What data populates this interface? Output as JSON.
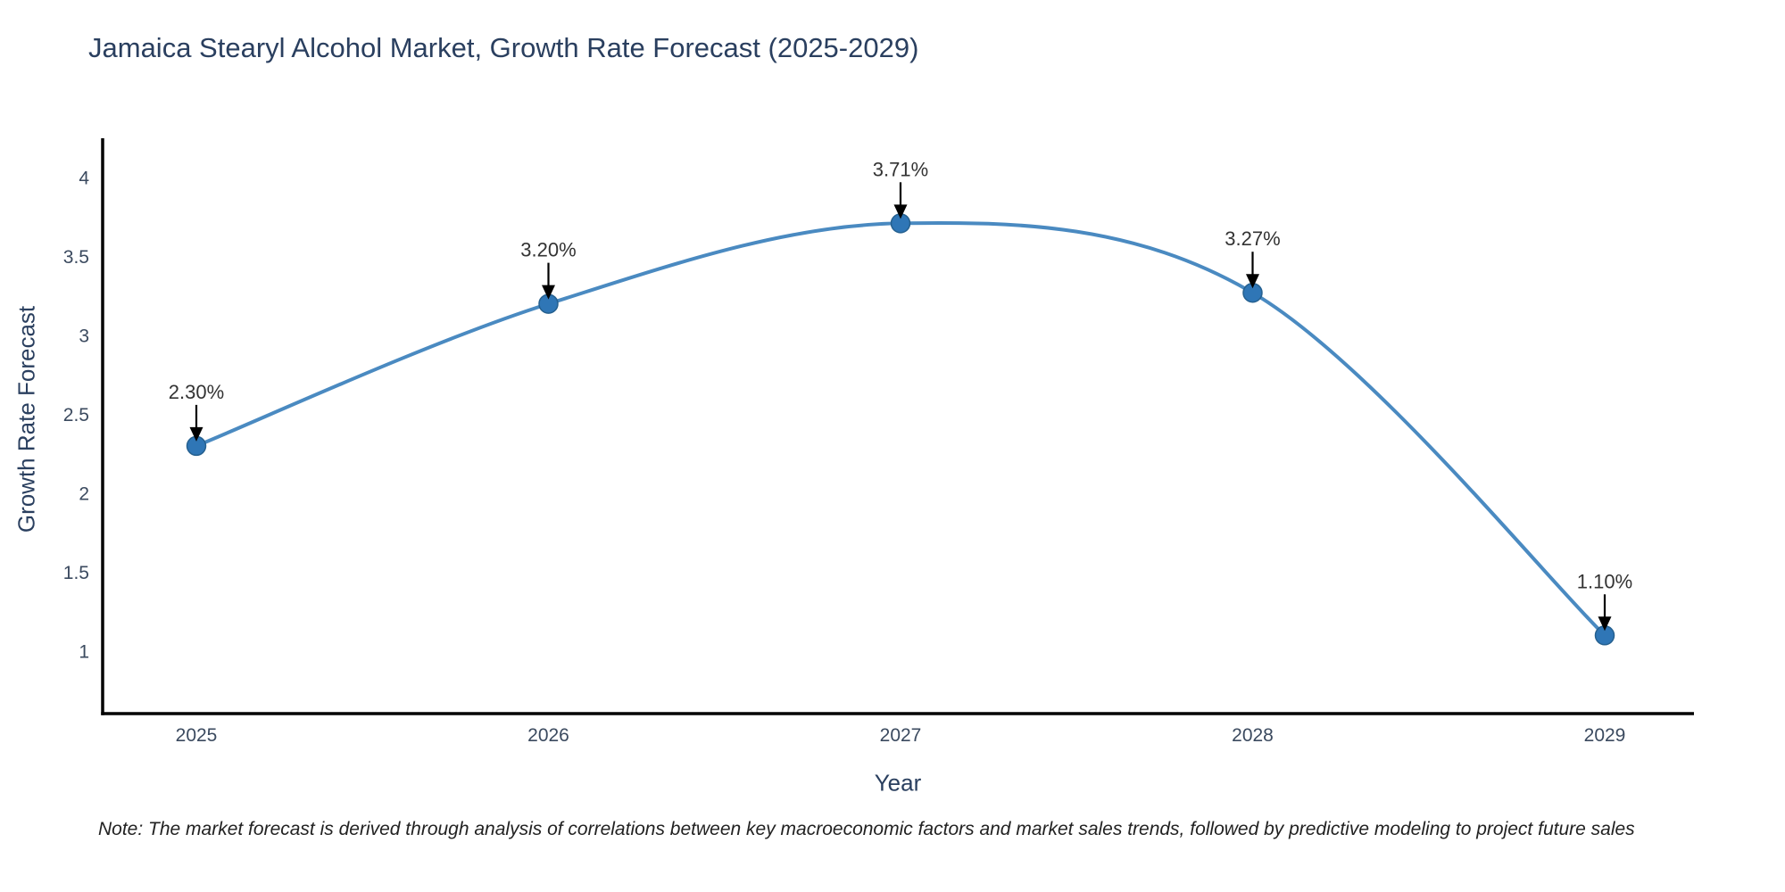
{
  "page": {
    "background": "#ffffff"
  },
  "chart_data": {
    "type": "line",
    "title": "Jamaica Stearyl Alcohol Market, Growth Rate Forecast (2025-2029)",
    "xlabel": "Year",
    "ylabel": "Growth Rate Forecast",
    "x": [
      2025,
      2026,
      2027,
      2028,
      2029
    ],
    "series": [
      {
        "name": "Growth Rate Forecast",
        "values": [
          2.3,
          3.2,
          3.71,
          3.27,
          1.1
        ]
      }
    ],
    "point_labels": [
      "2.30%",
      "3.20%",
      "3.71%",
      "3.27%",
      "1.10%"
    ],
    "yticks": [
      1,
      1.5,
      2,
      2.5,
      3,
      3.5,
      4
    ],
    "ytick_labels": [
      "1",
      "1.5",
      "2",
      "2.5",
      "3",
      "3.5",
      "4"
    ],
    "xtick_labels": [
      "2025",
      "2026",
      "2027",
      "2028",
      "2029"
    ],
    "xlim": [
      2024.73,
      2029.26
    ],
    "ylim": [
      0.6,
      4.23
    ],
    "grid": false,
    "legend": false,
    "line_shape": "spline",
    "annotations_have_arrows": true,
    "colors": {
      "line": "#4a8ac1",
      "marker": "#2f76b6",
      "marker_edge": "#25608f",
      "axis": "#000000",
      "title_text": "#2a3f5f",
      "tick_text": "#3b4a5f",
      "annotation_text": "#333333",
      "annotation_arrow": "#000000",
      "note_text": "#222222"
    }
  },
  "note": {
    "text": "Note: The market forecast is derived through analysis of correlations between key macroeconomic factors and market sales trends, followed by predictive modeling to project future sales"
  }
}
